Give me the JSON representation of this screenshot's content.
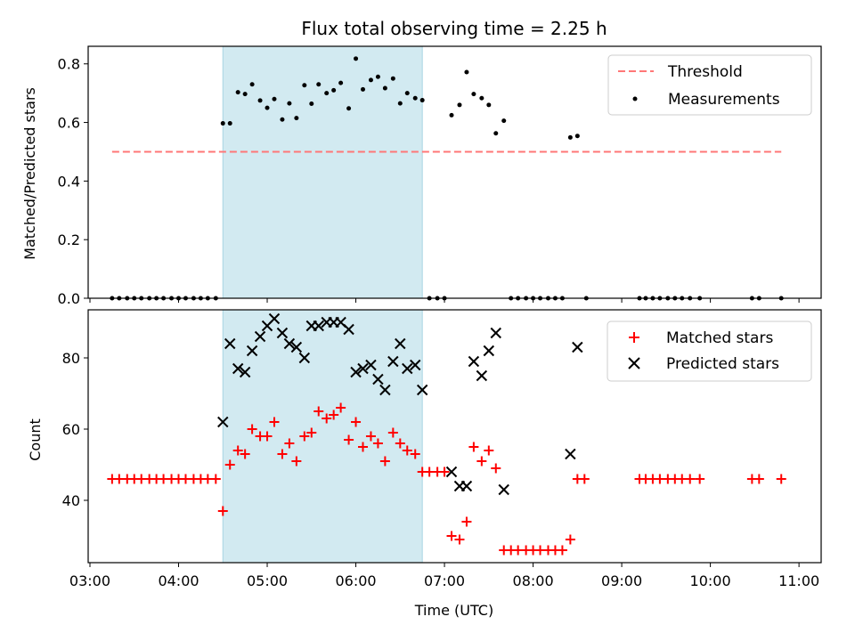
{
  "chart_data": [
    {
      "type": "scatter",
      "title": "Flux total observing time = 2.25 h",
      "xlabel": "",
      "ylabel": "Matched/Predicted stars",
      "xlim": [
        2.98,
        11.25
      ],
      "ylim": [
        0.0,
        0.86
      ],
      "yticks": [
        0.0,
        0.2,
        0.4,
        0.6,
        0.8
      ],
      "ytick_labels": [
        "0.0",
        "0.2",
        "0.4",
        "0.6",
        "0.8"
      ],
      "shaded_interval": [
        4.5,
        6.75
      ],
      "shade_color": "#d2eaf1",
      "threshold": {
        "name": "Threshold",
        "value": 0.5,
        "x_range": [
          3.25,
          10.8
        ],
        "color": "#ff7777"
      },
      "legend_position": "upper right",
      "legend": [
        "Threshold",
        "Measurements"
      ],
      "series": [
        {
          "name": "Measurements",
          "marker": "dot",
          "color": "#000000",
          "points": [
            [
              3.25,
              0
            ],
            [
              3.33,
              0
            ],
            [
              3.42,
              0
            ],
            [
              3.5,
              0
            ],
            [
              3.58,
              0
            ],
            [
              3.67,
              0
            ],
            [
              3.75,
              0
            ],
            [
              3.83,
              0
            ],
            [
              3.92,
              0
            ],
            [
              4.0,
              0
            ],
            [
              4.08,
              0
            ],
            [
              4.17,
              0
            ],
            [
              4.25,
              0
            ],
            [
              4.33,
              0
            ],
            [
              4.42,
              0
            ],
            [
              4.5,
              0.597
            ],
            [
              4.58,
              0.597
            ],
            [
              4.67,
              0.703
            ],
            [
              4.75,
              0.697
            ],
            [
              4.83,
              0.73
            ],
            [
              4.92,
              0.675
            ],
            [
              5.0,
              0.65
            ],
            [
              5.08,
              0.68
            ],
            [
              5.17,
              0.61
            ],
            [
              5.25,
              0.665
            ],
            [
              5.33,
              0.615
            ],
            [
              5.42,
              0.727
            ],
            [
              5.5,
              0.664
            ],
            [
              5.58,
              0.73
            ],
            [
              5.67,
              0.7
            ],
            [
              5.75,
              0.71
            ],
            [
              5.83,
              0.735
            ],
            [
              5.92,
              0.648
            ],
            [
              6.0,
              0.818
            ],
            [
              6.08,
              0.713
            ],
            [
              6.17,
              0.745
            ],
            [
              6.25,
              0.756
            ],
            [
              6.33,
              0.717
            ],
            [
              6.42,
              0.75
            ],
            [
              6.5,
              0.665
            ],
            [
              6.58,
              0.7
            ],
            [
              6.67,
              0.683
            ],
            [
              6.75,
              0.676
            ],
            [
              6.83,
              0
            ],
            [
              6.92,
              0
            ],
            [
              7.0,
              0
            ],
            [
              7.08,
              0.625
            ],
            [
              7.17,
              0.66
            ],
            [
              7.25,
              0.772
            ],
            [
              7.33,
              0.697
            ],
            [
              7.42,
              0.683
            ],
            [
              7.5,
              0.66
            ],
            [
              7.58,
              0.563
            ],
            [
              7.67,
              0.606
            ],
            [
              7.75,
              0
            ],
            [
              7.83,
              0
            ],
            [
              7.92,
              0
            ],
            [
              8.0,
              0
            ],
            [
              8.08,
              0
            ],
            [
              8.17,
              0
            ],
            [
              8.25,
              0
            ],
            [
              8.33,
              0
            ],
            [
              8.42,
              0.549
            ],
            [
              8.5,
              0.554
            ],
            [
              8.6,
              0
            ],
            [
              9.2,
              0
            ],
            [
              9.27,
              0
            ],
            [
              9.35,
              0
            ],
            [
              9.43,
              0
            ],
            [
              9.52,
              0
            ],
            [
              9.6,
              0
            ],
            [
              9.68,
              0
            ],
            [
              9.77,
              0
            ],
            [
              9.88,
              0
            ],
            [
              10.47,
              0
            ],
            [
              10.55,
              0
            ],
            [
              10.8,
              0
            ]
          ]
        }
      ]
    },
    {
      "type": "scatter",
      "title": "",
      "xlabel": "Time (UTC)",
      "ylabel": "Count",
      "xlim": [
        2.98,
        11.25
      ],
      "ylim": [
        22.5,
        93.5
      ],
      "yticks": [
        40,
        60,
        80
      ],
      "ytick_labels": [
        "40",
        "60",
        "80"
      ],
      "xticks": [
        3,
        4,
        5,
        6,
        7,
        8,
        9,
        10,
        11
      ],
      "xtick_labels": [
        "03:00",
        "04:00",
        "05:00",
        "06:00",
        "07:00",
        "08:00",
        "09:00",
        "10:00",
        "11:00"
      ],
      "shaded_interval": [
        4.5,
        6.75
      ],
      "shade_color": "#d2eaf1",
      "legend_position": "upper right",
      "legend": [
        "Matched stars",
        "Predicted stars"
      ],
      "series": [
        {
          "name": "Matched stars",
          "marker": "plus",
          "color": "#ff0000",
          "points": [
            [
              3.25,
              46
            ],
            [
              3.33,
              46
            ],
            [
              3.42,
              46
            ],
            [
              3.5,
              46
            ],
            [
              3.58,
              46
            ],
            [
              3.67,
              46
            ],
            [
              3.75,
              46
            ],
            [
              3.83,
              46
            ],
            [
              3.92,
              46
            ],
            [
              4.0,
              46
            ],
            [
              4.08,
              46
            ],
            [
              4.17,
              46
            ],
            [
              4.25,
              46
            ],
            [
              4.33,
              46
            ],
            [
              4.42,
              46
            ],
            [
              4.5,
              37
            ],
            [
              4.58,
              50
            ],
            [
              4.67,
              54
            ],
            [
              4.75,
              53
            ],
            [
              4.83,
              60
            ],
            [
              4.92,
              58
            ],
            [
              5.0,
              58
            ],
            [
              5.08,
              62
            ],
            [
              5.17,
              53
            ],
            [
              5.25,
              56
            ],
            [
              5.33,
              51
            ],
            [
              5.42,
              58
            ],
            [
              5.5,
              59
            ],
            [
              5.58,
              65
            ],
            [
              5.67,
              63
            ],
            [
              5.75,
              64
            ],
            [
              5.83,
              66
            ],
            [
              5.92,
              57
            ],
            [
              6.0,
              62
            ],
            [
              6.08,
              55
            ],
            [
              6.17,
              58
            ],
            [
              6.25,
              56
            ],
            [
              6.33,
              51
            ],
            [
              6.42,
              59
            ],
            [
              6.5,
              56
            ],
            [
              6.58,
              54
            ],
            [
              6.67,
              53
            ],
            [
              6.75,
              48
            ],
            [
              6.83,
              48
            ],
            [
              6.92,
              48
            ],
            [
              7.0,
              48
            ],
            [
              7.08,
              30
            ],
            [
              7.17,
              29
            ],
            [
              7.25,
              34
            ],
            [
              7.33,
              55
            ],
            [
              7.42,
              51
            ],
            [
              7.5,
              54
            ],
            [
              7.58,
              49
            ],
            [
              7.67,
              26
            ],
            [
              7.75,
              26
            ],
            [
              7.83,
              26
            ],
            [
              7.92,
              26
            ],
            [
              8.0,
              26
            ],
            [
              8.08,
              26
            ],
            [
              8.17,
              26
            ],
            [
              8.25,
              26
            ],
            [
              8.33,
              26
            ],
            [
              8.42,
              29
            ],
            [
              8.5,
              46
            ],
            [
              8.58,
              46
            ],
            [
              9.2,
              46
            ],
            [
              9.27,
              46
            ],
            [
              9.35,
              46
            ],
            [
              9.43,
              46
            ],
            [
              9.52,
              46
            ],
            [
              9.6,
              46
            ],
            [
              9.68,
              46
            ],
            [
              9.77,
              46
            ],
            [
              9.88,
              46
            ],
            [
              10.47,
              46
            ],
            [
              10.55,
              46
            ],
            [
              10.8,
              46
            ]
          ]
        },
        {
          "name": "Predicted stars",
          "marker": "x",
          "color": "#000000",
          "points": [
            [
              4.5,
              62
            ],
            [
              4.58,
              84
            ],
            [
              4.67,
              77
            ],
            [
              4.75,
              76
            ],
            [
              4.83,
              82
            ],
            [
              4.92,
              86
            ],
            [
              5.0,
              89
            ],
            [
              5.08,
              91
            ],
            [
              5.17,
              87
            ],
            [
              5.25,
              84
            ],
            [
              5.33,
              83
            ],
            [
              5.42,
              80
            ],
            [
              5.5,
              89
            ],
            [
              5.58,
              89
            ],
            [
              5.67,
              90
            ],
            [
              5.75,
              90
            ],
            [
              5.83,
              90
            ],
            [
              5.92,
              88
            ],
            [
              6.0,
              76
            ],
            [
              6.08,
              77
            ],
            [
              6.17,
              78
            ],
            [
              6.25,
              74
            ],
            [
              6.33,
              71
            ],
            [
              6.42,
              79
            ],
            [
              6.5,
              84
            ],
            [
              6.58,
              77
            ],
            [
              6.67,
              78
            ],
            [
              6.75,
              71
            ],
            [
              7.08,
              48
            ],
            [
              7.17,
              44
            ],
            [
              7.25,
              44
            ],
            [
              7.33,
              79
            ],
            [
              7.42,
              75
            ],
            [
              7.5,
              82
            ],
            [
              7.58,
              87
            ],
            [
              7.67,
              43
            ],
            [
              8.42,
              53
            ],
            [
              8.5,
              83
            ]
          ]
        }
      ]
    }
  ]
}
